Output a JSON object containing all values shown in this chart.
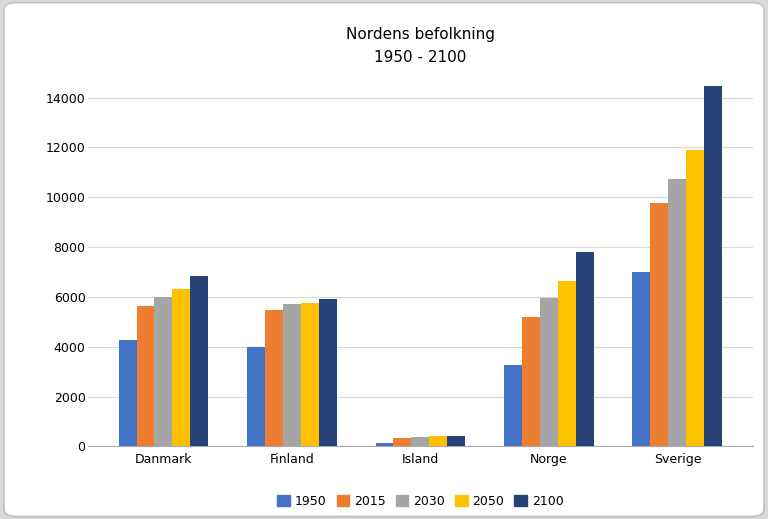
{
  "title_line1": "Nordens befolkning",
  "title_line2": "1950 - 2100",
  "categories": [
    "Danmark",
    "Finland",
    "Island",
    "Norge",
    "Sverige"
  ],
  "years": [
    "1950",
    "2015",
    "2030",
    "2050",
    "2100"
  ],
  "values": {
    "Danmark": [
      4270,
      5650,
      6000,
      6300,
      6850
    ],
    "Finland": [
      4000,
      5480,
      5700,
      5750,
      5900
    ],
    "Island": [
      140,
      330,
      370,
      400,
      410
    ],
    "Norge": [
      3280,
      5200,
      5960,
      6650,
      7820
    ],
    "Sverige": [
      7000,
      9750,
      10750,
      11900,
      14450
    ]
  },
  "bar_colors": {
    "1950": "#4472C4",
    "2015": "#ED7D31",
    "2030": "#A5A5A5",
    "2050": "#FFC000",
    "2100": "#264478"
  },
  "ylim": [
    0,
    15000
  ],
  "yticks": [
    0,
    2000,
    4000,
    6000,
    8000,
    10000,
    12000,
    14000
  ],
  "background_color": "#FFFFFF",
  "outer_bg": "#D9D9D9",
  "grid_color": "#D9D9D9",
  "title_fontsize": 11,
  "legend_fontsize": 9,
  "tick_fontsize": 9
}
